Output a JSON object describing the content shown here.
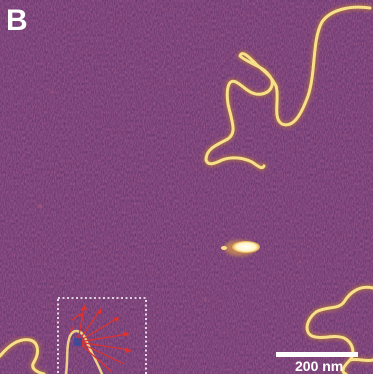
{
  "figure": {
    "panel_label": "B",
    "scale_bar": {
      "label": "200 nm"
    }
  },
  "colors": {
    "background": "#5a2f69",
    "strand": "#f7e08a",
    "strand_glow": "#c98b2a",
    "annotation": "#e0312d",
    "inset_border": "#ffffff"
  }
}
